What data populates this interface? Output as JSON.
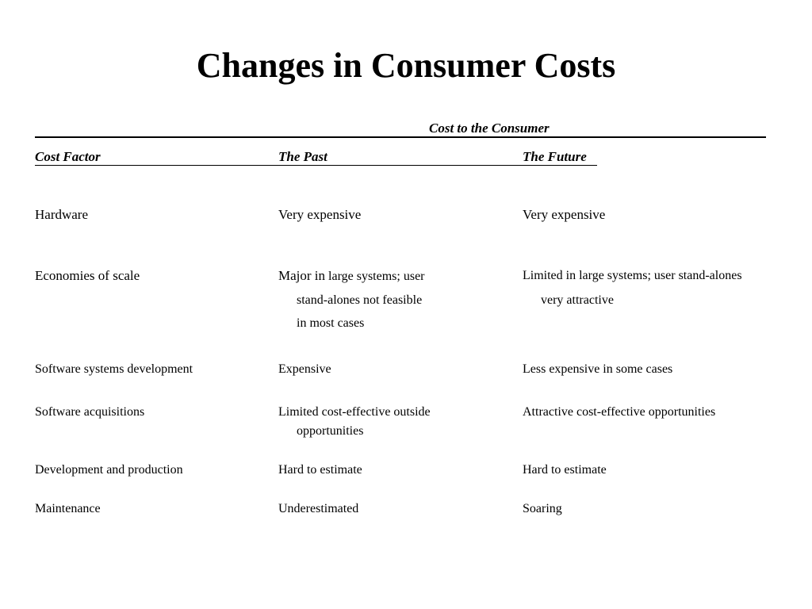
{
  "title": "Changes in Consumer Costs",
  "span_header": "Cost  to the Consumer",
  "columns": {
    "factor": "Cost  Factor",
    "past": "The Past",
    "future": "The Future"
  },
  "rows": [
    {
      "factor": "Hardware",
      "past": [
        "Very expensive"
      ],
      "future": [
        "Very expensive"
      ]
    },
    {
      "factor": "Economies of scale",
      "past_lead": "Major in",
      "past": [
        "large systems; user",
        "stand-alones not feasible",
        "in most cases"
      ],
      "future": [
        "Limited in large systems; user stand-alones",
        "very attractive"
      ]
    },
    {
      "factor": "Software systems development",
      "past": [
        "Expensive"
      ],
      "future": [
        "Less expensive in some cases"
      ]
    },
    {
      "factor": "Software acquisitions",
      "past": [
        "Limited cost-effective outside",
        "opportunities"
      ],
      "future": [
        "Attractive cost-effective opportunities"
      ]
    },
    {
      "factor": "Development and production",
      "past": [
        "Hard to estimate"
      ],
      "future": [
        "Hard to estimate"
      ]
    },
    {
      "factor": "Maintenance",
      "past": [
        "Underestimated"
      ],
      "future": [
        "Soaring"
      ]
    }
  ]
}
